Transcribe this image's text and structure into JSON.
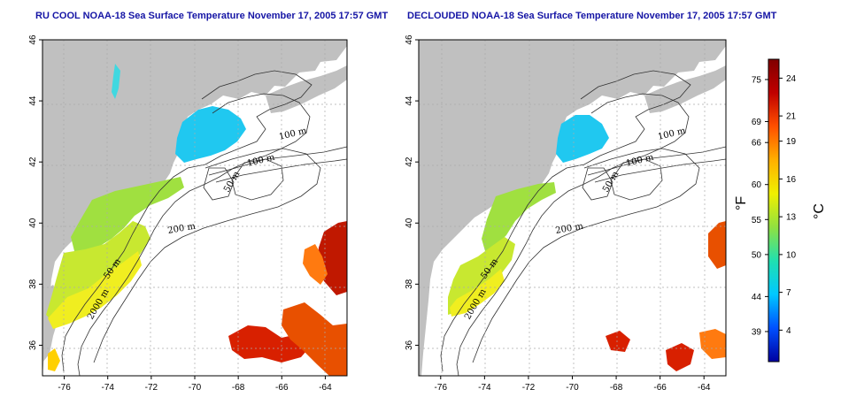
{
  "panels": [
    {
      "title": "RU COOL NOAA-18 Sea Surface Temperature November 17, 2005 17:57 GMT",
      "contour_labels": [
        "100 m",
        "100 m",
        "50 m",
        "200 m",
        "50 m",
        "2000 m"
      ]
    },
    {
      "title": "DECLOUDED NOAA-18 Sea Surface Temperature November 17, 2005 17:57 GMT",
      "contour_labels": [
        "100 m",
        "100 m",
        "50 m",
        "200 m",
        "50 m",
        "2000 m"
      ]
    }
  ],
  "axes": {
    "lon_ticks": [
      "-76",
      "-74",
      "-72",
      "-70",
      "-68",
      "-66",
      "-64"
    ],
    "lat_ticks": [
      "36",
      "38",
      "40",
      "42",
      "44",
      "46"
    ],
    "lon_range": [
      -77,
      -63
    ],
    "lat_range": [
      35,
      46
    ],
    "grid": "dotted"
  },
  "colorbar": {
    "fahrenheit_ticks": [
      "75",
      "69",
      "66",
      "60",
      "55",
      "50",
      "44",
      "39"
    ],
    "celsius_ticks": [
      "24",
      "21",
      "19",
      "16",
      "13",
      "10",
      "7",
      "4"
    ],
    "fahrenheit_unit": "°F",
    "celsius_unit": "°C",
    "colors": [
      "#0000a0",
      "#0050ff",
      "#00c8ff",
      "#20e0b0",
      "#90e040",
      "#f0f000",
      "#ffb000",
      "#ff5000",
      "#c00000",
      "#800000"
    ]
  },
  "colors": {
    "land": "#c0c0c0",
    "cold": "#20c8f0",
    "mid": "#80d850",
    "warm": "#f0f020",
    "hot": "#d82000",
    "title": "#1515a5"
  }
}
